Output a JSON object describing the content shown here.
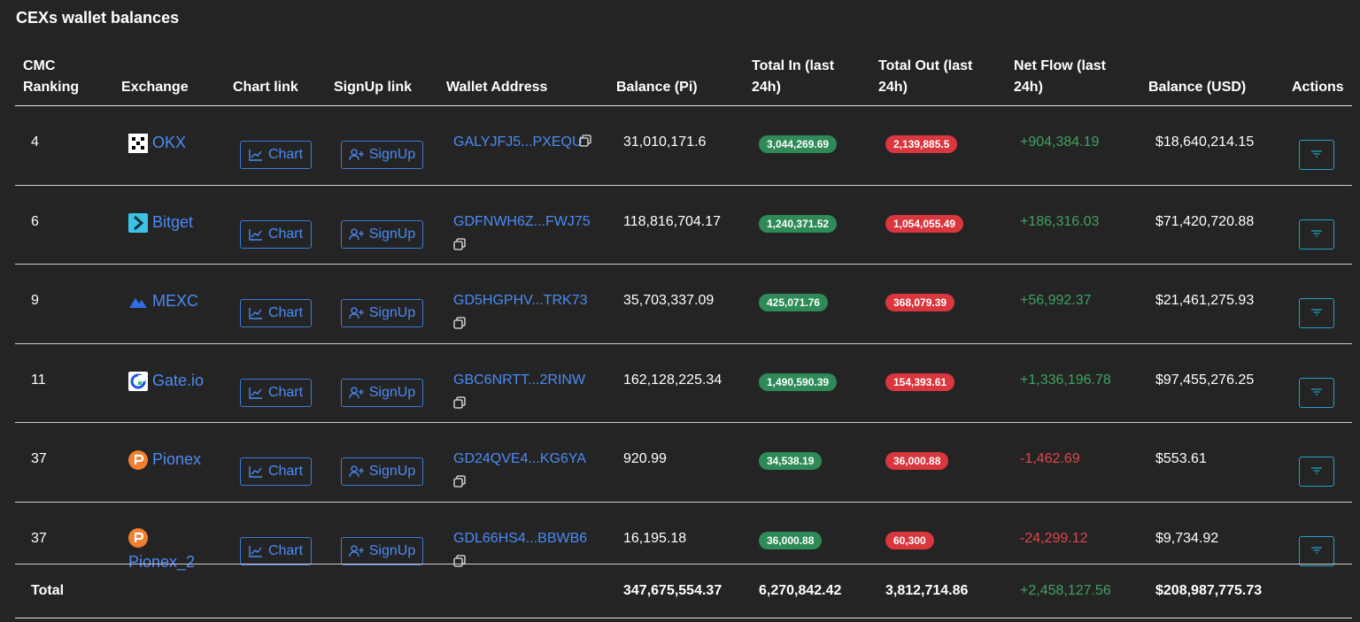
{
  "title": "CEXs wallet balances",
  "headers": {
    "rank": [
      "CMC",
      "Ranking"
    ],
    "exchange": "Exchange",
    "chart": "Chart link",
    "signup": "SignUp link",
    "wallet": "Wallet Address",
    "balance_pi": "Balance (Pi)",
    "total_in": [
      "Total In (last",
      "24h)"
    ],
    "total_out": [
      "Total Out (last",
      "24h)"
    ],
    "net_flow": [
      "Net Flow (last",
      "24h)"
    ],
    "balance_usd": "Balance (USD)",
    "actions": "Actions"
  },
  "buttons": {
    "chart": "Chart",
    "signup": "SignUp"
  },
  "colors": {
    "link": "#4b8bf5",
    "in": "#2e8b57",
    "out": "#d9363e",
    "pos": "#3fa35f",
    "neg": "#e0474c"
  },
  "rows": [
    {
      "rank": "4",
      "exchange": [
        "OKX"
      ],
      "icon": "okx-logo-icon",
      "address": "GALYJFJ5...PXEQU",
      "balance_pi": "31,010,171.6",
      "total_in": "3,044,269.69",
      "total_out": "2,139,885.5",
      "net_flow": "+904,384.19",
      "balance_usd": "$18,640,214.15"
    },
    {
      "rank": "6",
      "exchange": [
        "Bitget"
      ],
      "icon": "bitget-logo-icon",
      "address": "GDFNWH6Z...FWJ75",
      "balance_pi": "118,816,704.17",
      "total_in": "1,240,371.52",
      "total_out": "1,054,055.49",
      "net_flow": "+186,316.03",
      "balance_usd": "$71,420,720.88"
    },
    {
      "rank": "9",
      "exchange": [
        "MEXC"
      ],
      "icon": "mexc-logo-icon",
      "address": "GD5HGPHV...TRK73",
      "balance_pi": "35,703,337.09",
      "total_in": "425,071.76",
      "total_out": "368,079.39",
      "net_flow": "+56,992.37",
      "balance_usd": "$21,461,275.93"
    },
    {
      "rank": "11",
      "exchange": [
        "Gate.io"
      ],
      "icon": "gateio-logo-icon",
      "address": "GBC6NRTT...2RINW",
      "balance_pi": "162,128,225.34",
      "total_in": "1,490,590.39",
      "total_out": "154,393.61",
      "net_flow": "+1,336,196.78",
      "balance_usd": "$97,455,276.25"
    },
    {
      "rank": "37",
      "exchange": [
        "Pionex"
      ],
      "icon": "pionex-logo-icon",
      "address": "GD24QVE4...KG6YA",
      "balance_pi": "920.99",
      "total_in": "34,538.19",
      "total_out": "36,000.88",
      "net_flow": "-1,462.69",
      "balance_usd": "$553.61"
    },
    {
      "rank": "37",
      "exchange": [
        "",
        "Pionex_2"
      ],
      "icon": "pionex-logo-icon",
      "address": "GDL66HS4...BBWB6",
      "balance_pi": "16,195.18",
      "total_in": "36,000.88",
      "total_out": "60,300",
      "net_flow": "-24,299.12",
      "balance_usd": "$9,734.92"
    }
  ],
  "total": {
    "label": "Total",
    "balance_pi": "347,675,554.37",
    "total_in": "6,270,842.42",
    "total_out": "3,812,714.86",
    "net_flow": "+2,458,127.56",
    "balance_usd": "$208,987,775.73"
  }
}
